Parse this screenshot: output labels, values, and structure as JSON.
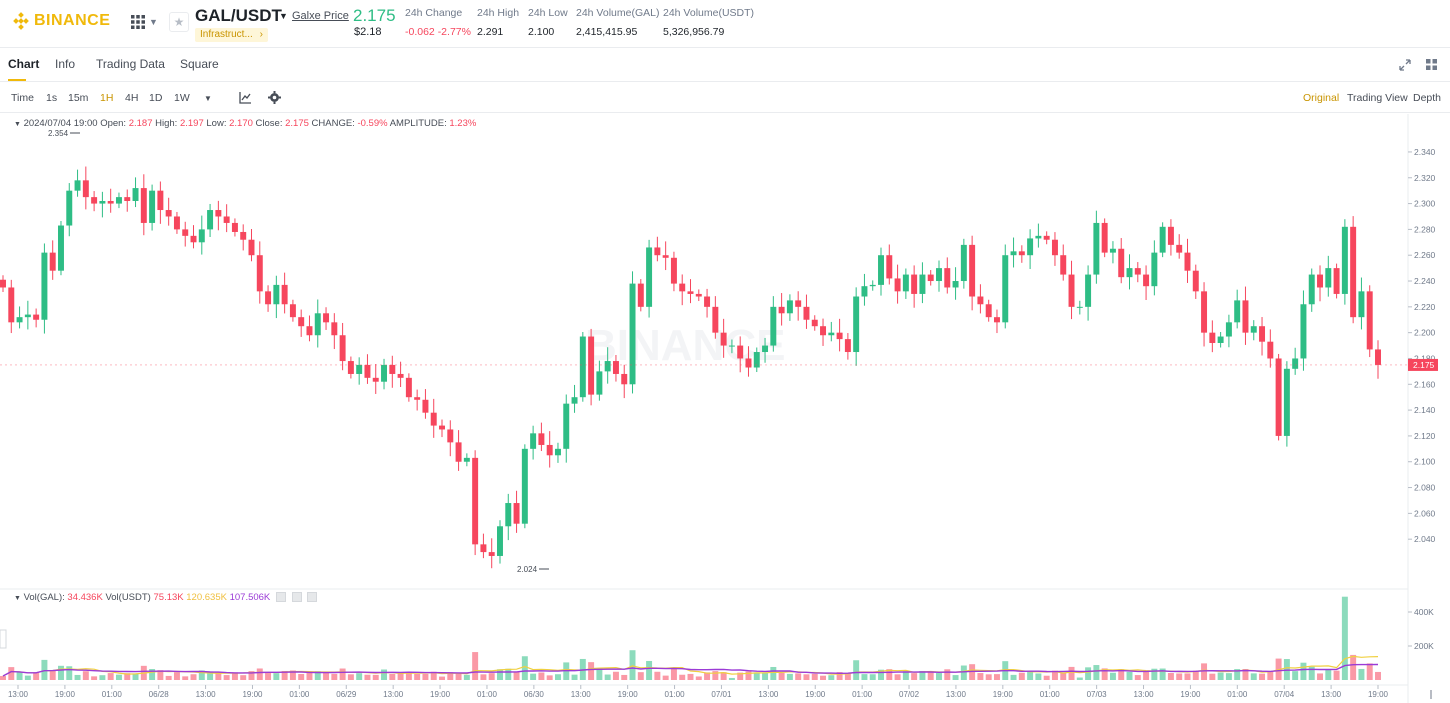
{
  "header": {
    "logo_text": "BINANCE",
    "pair": "GAL/USDT",
    "price_link": "Galxe Price",
    "tag": "Infrastruct...",
    "last_price": "2.175",
    "last_price_usd": "$2.18",
    "stats": [
      {
        "label": "24h Change",
        "value": "-0.062 -2.77%",
        "negative": true
      },
      {
        "label": "24h High",
        "value": "2.291",
        "negative": false
      },
      {
        "label": "24h Low",
        "value": "2.100",
        "negative": false
      },
      {
        "label": "24h Volume(GAL)",
        "value": "2,415,415.95",
        "negative": false
      },
      {
        "label": "24h Volume(USDT)",
        "value": "5,326,956.79",
        "negative": false
      }
    ]
  },
  "tabs": [
    "Chart",
    "Info",
    "Trading Data",
    "Square"
  ],
  "toolbar": {
    "intervals": [
      "Time",
      "1s",
      "15m",
      "1H",
      "4H",
      "1D",
      "1W"
    ],
    "active_interval": "1H",
    "views": [
      "Original",
      "Trading View",
      "Depth"
    ],
    "active_view": "Original"
  },
  "ohlc_line": {
    "date": "2024/07/04 19:00",
    "open_label": "Open:",
    "open": "2.187",
    "high_label": "High:",
    "high": "2.197",
    "low_label": "Low:",
    "low": "2.170",
    "close_label": "Close:",
    "close": "2.175",
    "change_label": "CHANGE:",
    "change": "-0.59%",
    "amplitude_label": "AMPLITUDE:",
    "amplitude": "1.23%"
  },
  "volume_line": {
    "vol_gal_label": "Vol(GAL):",
    "vol_gal": "34.436K",
    "vol_usdt_label": "Vol(USDT)",
    "vol_usdt": "75.13K",
    "ma1": "120.635K",
    "ma2": "107.506K"
  },
  "chart_data": {
    "type": "candlestick",
    "interval": "1H",
    "price_axis": [
      "2.340",
      "2.320",
      "2.300",
      "2.280",
      "2.260",
      "2.240",
      "2.220",
      "2.200",
      "2.180",
      "2.160",
      "2.140",
      "2.120",
      "2.100",
      "2.080",
      "2.060",
      "2.040"
    ],
    "ylim": [
      2.02,
      2.357
    ],
    "volume_axis": [
      "400K",
      "200K"
    ],
    "time_axis": [
      "13:00",
      "19:00",
      "01:00",
      "06/28",
      "13:00",
      "19:00",
      "01:00",
      "06/29",
      "13:00",
      "19:00",
      "01:00",
      "06/30",
      "13:00",
      "19:00",
      "01:00",
      "07/01",
      "13:00",
      "19:00",
      "01:00",
      "07/02",
      "13:00",
      "19:00",
      "01:00",
      "07/03",
      "13:00",
      "19:00",
      "01:00",
      "07/04",
      "13:00",
      "19:00"
    ],
    "high_marker": "2.354",
    "low_marker": "2.024",
    "current_price_label": "2.175",
    "closes": [
      2.235,
      2.208,
      2.212,
      2.214,
      2.21,
      2.262,
      2.248,
      2.283,
      2.31,
      2.318,
      2.305,
      2.3,
      2.302,
      2.3,
      2.305,
      2.302,
      2.312,
      2.285,
      2.31,
      2.295,
      2.29,
      2.28,
      2.275,
      2.27,
      2.28,
      2.295,
      2.29,
      2.285,
      2.278,
      2.272,
      2.26,
      2.232,
      2.222,
      2.237,
      2.222,
      2.212,
      2.205,
      2.198,
      2.215,
      2.208,
      2.198,
      2.178,
      2.168,
      2.175,
      2.165,
      2.162,
      2.175,
      2.168,
      2.165,
      2.15,
      2.148,
      2.138,
      2.128,
      2.125,
      2.115,
      2.1,
      2.103,
      2.036,
      2.03,
      2.027,
      2.05,
      2.068,
      2.052,
      2.11,
      2.122,
      2.113,
      2.105,
      2.11,
      2.145,
      2.15,
      2.197,
      2.152,
      2.17,
      2.178,
      2.168,
      2.16,
      2.238,
      2.22,
      2.266,
      2.26,
      2.258,
      2.238,
      2.232,
      2.23,
      2.228,
      2.22,
      2.2,
      2.19,
      2.19,
      2.18,
      2.173,
      2.185,
      2.19,
      2.22,
      2.215,
      2.225,
      2.22,
      2.21,
      2.205,
      2.198,
      2.2,
      2.195,
      2.185,
      2.228,
      2.236,
      2.237,
      2.26,
      2.242,
      2.232,
      2.245,
      2.23,
      2.245,
      2.24,
      2.25,
      2.235,
      2.24,
      2.268,
      2.228,
      2.222,
      2.212,
      2.208,
      2.26,
      2.263,
      2.26,
      2.273,
      2.275,
      2.272,
      2.26,
      2.245,
      2.22,
      2.22,
      2.245,
      2.285,
      2.262,
      2.265,
      2.243,
      2.25,
      2.245,
      2.236,
      2.262,
      2.282,
      2.268,
      2.262,
      2.248,
      2.232,
      2.2,
      2.192,
      2.197,
      2.208,
      2.225,
      2.2,
      2.205,
      2.193,
      2.18,
      2.12,
      2.172,
      2.18,
      2.222,
      2.245,
      2.235,
      2.25,
      2.23,
      2.282,
      2.212,
      2.232,
      2.187,
      2.175
    ],
    "volume_max_label": "400K"
  }
}
